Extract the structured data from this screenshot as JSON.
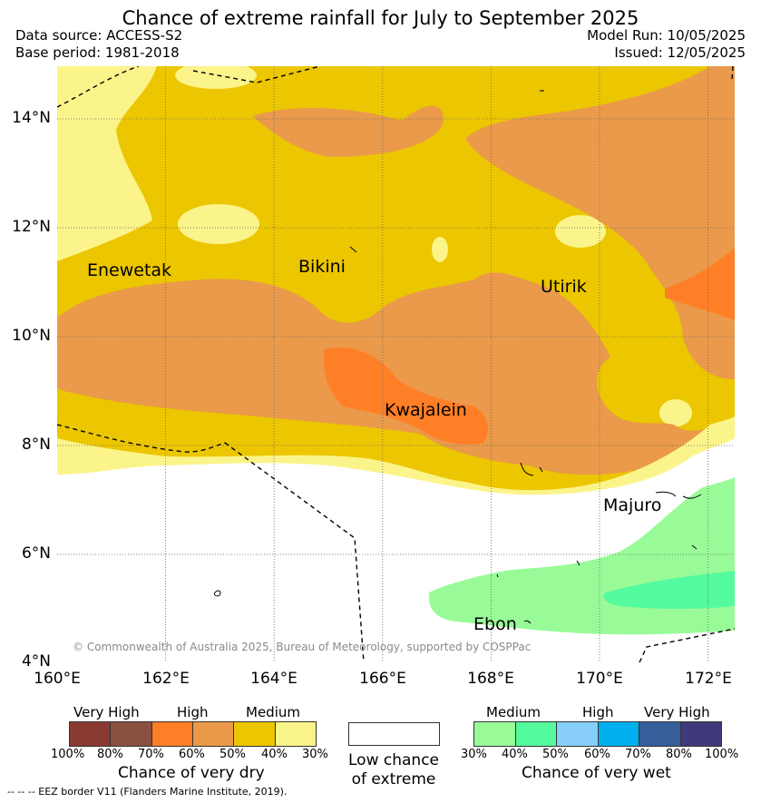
{
  "title": "Chance of extreme rainfall for July to September 2025",
  "meta": {
    "data_source": "Data source: ACCESS-S2",
    "base_period": "Base period: 1981-2018",
    "model_run": "Model Run: 10/05/2025",
    "issued": "Issued: 12/05/2025"
  },
  "axes": {
    "lat_labels": [
      "14°N",
      "12°N",
      "10°N",
      "8°N",
      "6°N",
      "4°N"
    ],
    "lon_labels": [
      "160°E",
      "162°E",
      "164°E",
      "166°E",
      "168°E",
      "170°E",
      "172°E"
    ]
  },
  "places": [
    "Enewetak",
    "Bikini",
    "Utirik",
    "Kwajalein",
    "Majuro",
    "Ebon"
  ],
  "copyright": "© Commonwealth of Australia 2025, Bureau of Meteorology, supported by COSPPac",
  "legend": {
    "dry": {
      "categories": [
        "Very High",
        "High",
        "Medium"
      ],
      "percents": [
        "100%",
        "80%",
        "70%",
        "60%",
        "50%",
        "40%",
        "30%"
      ],
      "title": "Chance of very dry",
      "colors": [
        "#8b3a32",
        "#8a5040",
        "#ff7f27",
        "#ea9a4a",
        "#ecc600",
        "#fbf48a"
      ]
    },
    "low": {
      "line1": "Low chance",
      "line2": "of extreme"
    },
    "wet": {
      "categories": [
        "Medium",
        "High",
        "Very High"
      ],
      "percents": [
        "30%",
        "40%",
        "50%",
        "60%",
        "70%",
        "80%",
        "100%"
      ],
      "title": "Chance of very wet",
      "colors": [
        "#99fb98",
        "#54fa9e",
        "#87cefa",
        "#00b0ee",
        "#355e9b",
        "#3f3b7a"
      ]
    },
    "eez_note": "-- -- -- EEZ border V11 (Flanders Marine Institute, 2019)."
  }
}
